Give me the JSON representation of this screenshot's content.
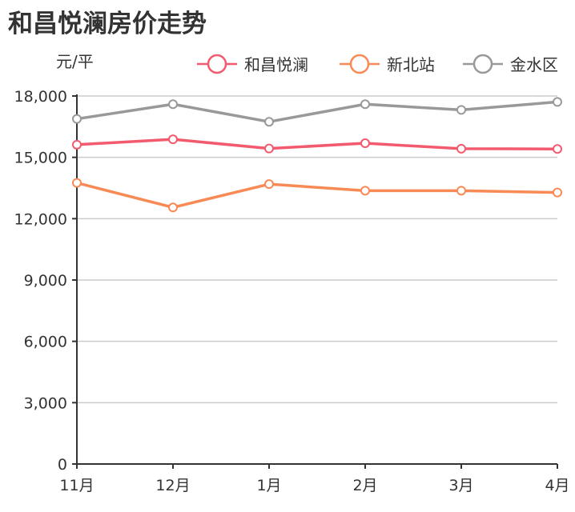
{
  "chart_data": {
    "type": "line",
    "title": "和昌悦澜房价走势",
    "ylabel": "元/平",
    "xlabel": "",
    "categories": [
      "11月",
      "12月",
      "1月",
      "2月",
      "3月",
      "4月"
    ],
    "ylim": [
      0,
      18000
    ],
    "yticks": [
      0,
      3000,
      6000,
      9000,
      12000,
      15000,
      18000
    ],
    "ytick_labels": [
      "0",
      "3,000",
      "6,000",
      "9,000",
      "12,000",
      "15,000",
      "18,000"
    ],
    "grid": true,
    "legend": "top-right",
    "series": [
      {
        "name": "和昌悦澜",
        "color": "#f25a6e",
        "values": [
          15620,
          15880,
          15430,
          15690,
          15420,
          15410
        ]
      },
      {
        "name": "新北站",
        "color": "#f88a55",
        "values": [
          13750,
          12550,
          13690,
          13370,
          13370,
          13280
        ]
      },
      {
        "name": "金水区",
        "color": "#999999",
        "values": [
          16880,
          17600,
          16740,
          17600,
          17320,
          17710
        ]
      }
    ]
  }
}
